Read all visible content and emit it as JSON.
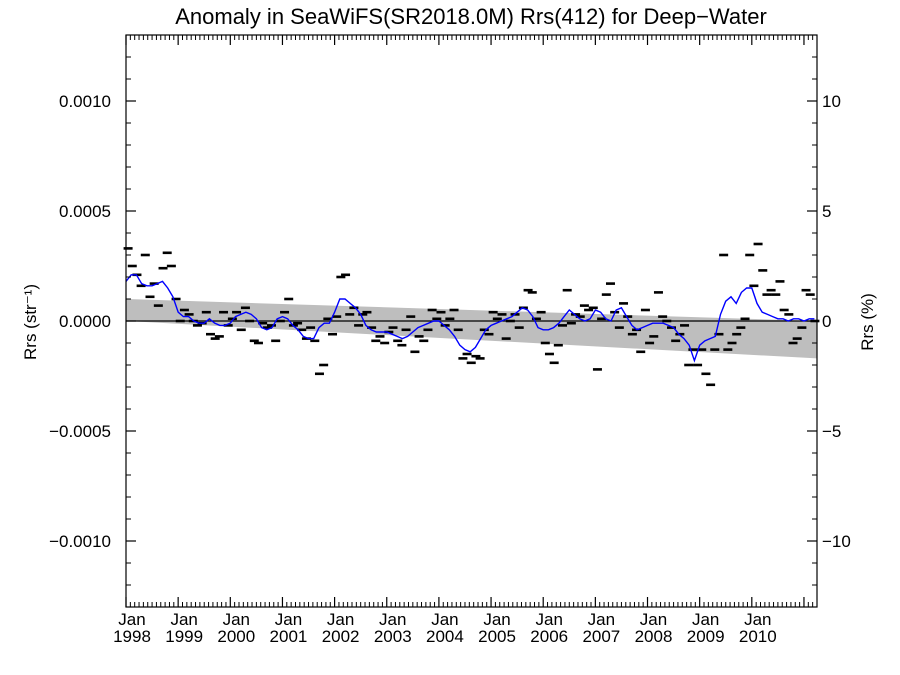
{
  "chart_data": {
    "type": "scatter",
    "title": "Anomaly in SeaWiFS(SR2018.0M) Rrs(412) for Deep−Water",
    "ylabel_left": "Rrs (str⁻¹)",
    "ylabel_right": "Rrs (%)",
    "xlim": [
      1998.0,
      2011.25
    ],
    "ylim": [
      -0.0013,
      0.0013
    ],
    "ylim_right_percent": [
      -13,
      13
    ],
    "grid": false,
    "x_tick_labels": [
      {
        "x": 1998,
        "month": "Jan",
        "year": "1998"
      },
      {
        "x": 1999,
        "month": "Jan",
        "year": "1999"
      },
      {
        "x": 2000,
        "month": "Jan",
        "year": "2000"
      },
      {
        "x": 2001,
        "month": "Jan",
        "year": "2001"
      },
      {
        "x": 2002,
        "month": "Jan",
        "year": "2002"
      },
      {
        "x": 2003,
        "month": "Jan",
        "year": "2003"
      },
      {
        "x": 2004,
        "month": "Jan",
        "year": "2004"
      },
      {
        "x": 2005,
        "month": "Jan",
        "year": "2005"
      },
      {
        "x": 2006,
        "month": "Jan",
        "year": "2006"
      },
      {
        "x": 2007,
        "month": "Jan",
        "year": "2007"
      },
      {
        "x": 2008,
        "month": "Jan",
        "year": "2008"
      },
      {
        "x": 2009,
        "month": "Jan",
        "year": "2009"
      },
      {
        "x": 2010,
        "month": "Jan",
        "year": "2010"
      }
    ],
    "y_ticks_left": [
      {
        "value": 0.001,
        "label": "0.0010"
      },
      {
        "value": 0.0005,
        "label": "0.0005"
      },
      {
        "value": 0.0,
        "label": "0.0000"
      },
      {
        "value": -0.0005,
        "label": "−0.0005"
      },
      {
        "value": -0.001,
        "label": "−0.0010"
      }
    ],
    "y_ticks_right": [
      {
        "value": 10,
        "label": "10"
      },
      {
        "value": 5,
        "label": "5"
      },
      {
        "value": 0,
        "label": "0"
      },
      {
        "value": -5,
        "label": "−5"
      },
      {
        "value": -10,
        "label": "−10"
      }
    ],
    "zero_line": 0,
    "colors": {
      "points": "#000000",
      "running_mean": "#0000ff",
      "trend_band": "#bebebe",
      "axes": "#000000"
    },
    "trend_band": {
      "x": [
        1998.0,
        2011.25
      ],
      "upper": [
        0.0001,
        0.0
      ],
      "lower": [
        0.0,
        -0.00017
      ]
    },
    "series": [
      {
        "kind": "monthly_points",
        "x": [
          1998.04,
          1998.12,
          1998.21,
          1998.29,
          1998.37,
          1998.46,
          1998.54,
          1998.62,
          1998.71,
          1998.79,
          1998.87,
          1998.96,
          1999.04,
          1999.12,
          1999.21,
          1999.29,
          1999.37,
          1999.46,
          1999.54,
          1999.62,
          1999.71,
          1999.79,
          1999.87,
          1999.96,
          2000.04,
          2000.12,
          2000.21,
          2000.29,
          2000.37,
          2000.46,
          2000.54,
          2000.62,
          2000.71,
          2000.79,
          2000.87,
          2000.96,
          2001.04,
          2001.12,
          2001.21,
          2001.29,
          2001.37,
          2001.46,
          2001.54,
          2001.62,
          2001.71,
          2001.79,
          2001.87,
          2001.96,
          2002.04,
          2002.12,
          2002.21,
          2002.29,
          2002.37,
          2002.46,
          2002.54,
          2002.62,
          2002.71,
          2002.79,
          2002.87,
          2002.96,
          2003.04,
          2003.12,
          2003.21,
          2003.29,
          2003.37,
          2003.46,
          2003.54,
          2003.62,
          2003.71,
          2003.79,
          2003.87,
          2003.96,
          2004.04,
          2004.12,
          2004.21,
          2004.29,
          2004.37,
          2004.46,
          2004.54,
          2004.62,
          2004.71,
          2004.79,
          2004.87,
          2004.96,
          2005.04,
          2005.12,
          2005.21,
          2005.29,
          2005.37,
          2005.46,
          2005.54,
          2005.62,
          2005.71,
          2005.79,
          2005.87,
          2005.96,
          2006.04,
          2006.12,
          2006.21,
          2006.29,
          2006.37,
          2006.46,
          2006.54,
          2006.62,
          2006.71,
          2006.79,
          2006.87,
          2006.96,
          2007.04,
          2007.12,
          2007.21,
          2007.29,
          2007.37,
          2007.46,
          2007.54,
          2007.62,
          2007.71,
          2007.79,
          2007.87,
          2007.96,
          2008.04,
          2008.12,
          2008.21,
          2008.29,
          2008.37,
          2008.46,
          2008.54,
          2008.62,
          2008.71,
          2008.79,
          2008.87,
          2008.96,
          2009.04,
          2009.12,
          2009.21,
          2009.29,
          2009.37,
          2009.46,
          2009.54,
          2009.62,
          2009.71,
          2009.79,
          2009.87,
          2009.96,
          2010.04,
          2010.12,
          2010.21,
          2010.29,
          2010.37,
          2010.46,
          2010.54,
          2010.62,
          2010.71,
          2010.79,
          2010.87,
          2010.96,
          2011.04,
          2011.12,
          2011.21
        ],
        "y": [
          0.00033,
          0.00025,
          0.00021,
          0.00016,
          0.0003,
          0.00011,
          0.00017,
          7e-05,
          0.00024,
          0.00031,
          0.00025,
          0.0001,
          0.0,
          5e-05,
          3e-05,
          0.0,
          -2e-05,
          -1e-05,
          4e-05,
          -6e-05,
          -8e-05,
          -7e-05,
          4e-05,
          -2e-05,
          1e-05,
          4e-05,
          -4e-05,
          6e-05,
          0.0,
          -9e-05,
          -0.0001,
          -1e-05,
          -3e-05,
          -2e-05,
          -9e-05,
          0.0,
          4e-05,
          0.0001,
          -2e-05,
          -1e-05,
          -4e-05,
          -8e-05,
          -3e-05,
          -9e-05,
          -0.00024,
          -0.0002,
          1e-05,
          -6e-05,
          2e-05,
          0.0002,
          0.00021,
          3e-05,
          6e-05,
          -2e-05,
          3e-05,
          4e-05,
          -3e-05,
          -9e-05,
          -7e-05,
          -0.0001,
          -5e-05,
          -3e-05,
          -9e-05,
          -0.00011,
          -4e-05,
          2e-05,
          -0.00014,
          -7e-05,
          -9e-05,
          -4e-05,
          5e-05,
          1e-05,
          4e-05,
          -2e-05,
          1e-05,
          5e-05,
          -4e-05,
          -0.00017,
          -0.00015,
          -0.00019,
          -0.00016,
          -0.00017,
          -4e-05,
          -6e-05,
          4e-05,
          1e-05,
          3e-05,
          -8e-05,
          0.0,
          3e-05,
          -3e-05,
          6e-05,
          0.00014,
          0.00013,
          1e-05,
          4e-05,
          -0.0001,
          -0.00015,
          -0.00019,
          -0.00011,
          -2e-05,
          0.00014,
          -1e-05,
          3e-05,
          2e-05,
          7e-05,
          5e-05,
          6e-05,
          -0.00022,
          1e-05,
          0.00012,
          0.00017,
          4e-05,
          -3e-05,
          8e-05,
          2e-05,
          -6e-05,
          -4e-05,
          -0.00014,
          5e-05,
          -0.0001,
          -7e-05,
          0.00013,
          2e-05,
          0.0,
          -3e-05,
          -9e-05,
          -6e-05,
          -2e-05,
          -0.0002,
          -0.00013,
          -0.0002,
          -0.00013,
          -0.00024,
          -0.00029,
          -0.00013,
          -6e-05,
          0.0003,
          -0.00013,
          -0.0001,
          -6e-05,
          -3e-05,
          1e-05,
          0.0003,
          0.00016,
          0.00035,
          0.00023,
          0.00012,
          0.00014,
          0.00012,
          0.00018,
          5e-05,
          3e-05,
          -0.0001,
          -8e-05,
          -3e-05,
          0.00014,
          0.00012,
          0.0
        ]
      },
      {
        "kind": "running_mean",
        "x": [
          1998.0,
          1998.1,
          1998.2,
          1998.3,
          1998.4,
          1998.5,
          1998.6,
          1998.7,
          1998.8,
          1998.9,
          1999.0,
          1999.1,
          1999.2,
          1999.3,
          1999.4,
          1999.5,
          1999.6,
          1999.7,
          1999.8,
          1999.9,
          2000.0,
          2000.1,
          2000.2,
          2000.3,
          2000.4,
          2000.5,
          2000.6,
          2000.7,
          2000.8,
          2000.9,
          2001.0,
          2001.1,
          2001.2,
          2001.3,
          2001.4,
          2001.5,
          2001.6,
          2001.7,
          2001.8,
          2001.9,
          2002.0,
          2002.1,
          2002.2,
          2002.3,
          2002.4,
          2002.5,
          2002.6,
          2002.7,
          2002.8,
          2002.9,
          2003.0,
          2003.1,
          2003.2,
          2003.3,
          2003.4,
          2003.5,
          2003.6,
          2003.7,
          2003.8,
          2003.9,
          2004.0,
          2004.1,
          2004.2,
          2004.3,
          2004.4,
          2004.5,
          2004.6,
          2004.7,
          2004.8,
          2004.9,
          2005.0,
          2005.1,
          2005.2,
          2005.3,
          2005.4,
          2005.5,
          2005.6,
          2005.7,
          2005.8,
          2005.9,
          2006.0,
          2006.1,
          2006.2,
          2006.3,
          2006.4,
          2006.5,
          2006.6,
          2006.7,
          2006.8,
          2006.9,
          2007.0,
          2007.1,
          2007.2,
          2007.3,
          2007.4,
          2007.5,
          2007.6,
          2007.7,
          2007.8,
          2007.9,
          2008.0,
          2008.1,
          2008.2,
          2008.3,
          2008.4,
          2008.5,
          2008.6,
          2008.7,
          2008.8,
          2008.9,
          2009.0,
          2009.1,
          2009.2,
          2009.3,
          2009.4,
          2009.5,
          2009.6,
          2009.7,
          2009.8,
          2009.9,
          2010.0,
          2010.1,
          2010.2,
          2010.3,
          2010.4,
          2010.5,
          2010.6,
          2010.7,
          2010.8,
          2010.9,
          2011.0,
          2011.1,
          2011.2
        ],
        "y": [
          0.00018,
          0.00021,
          0.00021,
          0.00017,
          0.00016,
          0.00016,
          0.00017,
          0.00018,
          0.00015,
          0.00011,
          4e-05,
          2e-05,
          2e-05,
          0.0,
          -1e-05,
          -1e-05,
          1e-05,
          -1e-05,
          -2e-05,
          -2e-05,
          -1e-05,
          2e-05,
          3e-05,
          4e-05,
          3e-05,
          1e-05,
          -3e-05,
          -4e-05,
          -3e-05,
          1e-05,
          2e-05,
          1e-05,
          -2e-05,
          -4e-05,
          -7e-05,
          -8e-05,
          -8e-05,
          -3e-05,
          -1e-05,
          -1e-05,
          4e-05,
          0.0001,
          0.0001,
          8e-05,
          6e-05,
          3e-05,
          -2e-05,
          -4e-05,
          -5e-05,
          -5e-05,
          -5e-05,
          -6e-05,
          -7e-05,
          -8e-05,
          -7e-05,
          -5e-05,
          -3e-05,
          -2e-05,
          -1e-05,
          0.0,
          0.0,
          -2e-05,
          -4e-05,
          -7e-05,
          -0.00011,
          -0.00013,
          -0.00014,
          -0.00012,
          -8e-05,
          -4e-05,
          -2e-05,
          -1e-05,
          0.0,
          1e-05,
          2e-05,
          4e-05,
          6e-05,
          5e-05,
          2e-05,
          -3e-05,
          -4e-05,
          -4e-05,
          -3e-05,
          -1e-05,
          2e-05,
          5e-05,
          3e-05,
          1e-05,
          0.0,
          1e-05,
          5e-05,
          4e-05,
          1e-05,
          0.0,
          5e-05,
          6e-05,
          2e-05,
          -2e-05,
          -4e-05,
          -3e-05,
          -2e-05,
          -1e-05,
          -1e-05,
          -1e-05,
          -2e-05,
          -3e-05,
          -6e-05,
          -8e-05,
          -0.00011,
          -0.00018,
          -0.00011,
          -9e-05,
          -8e-05,
          -7e-05,
          3e-05,
          9e-05,
          0.00011,
          8e-05,
          0.00013,
          0.00015,
          0.00015,
          8e-05,
          4e-05,
          3e-05,
          2e-05,
          1e-05,
          1e-05,
          0.0,
          1e-05,
          1e-05,
          0.0,
          1e-05,
          1e-05
        ]
      }
    ]
  }
}
